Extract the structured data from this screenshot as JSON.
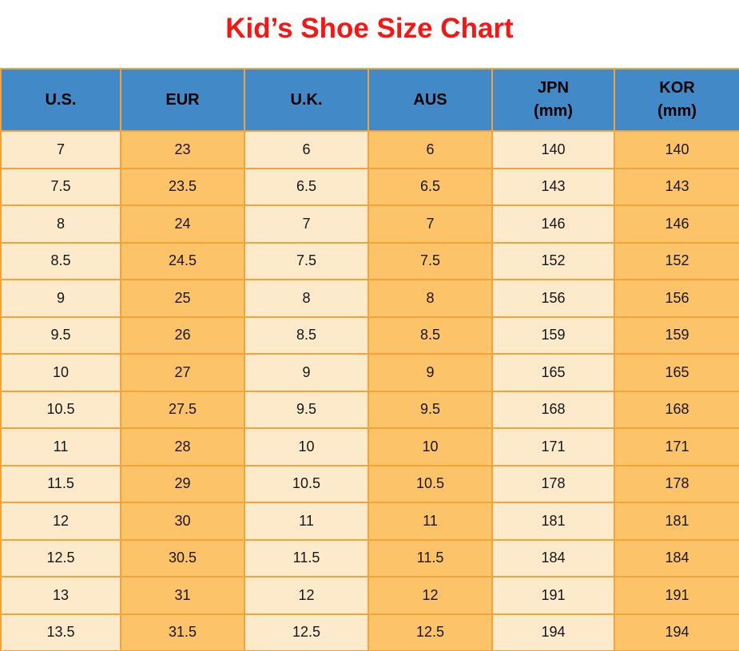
{
  "page_title": "Kid’s Shoe Size Chart",
  "colors": {
    "title_red": "#fb1412",
    "header_blue": "#4289c7",
    "cell_cream": "#fdeacb",
    "cell_orange": "#fdc368",
    "grid_orange": "#f2a33a",
    "text_black": "#161616"
  },
  "chart_data": {
    "type": "table",
    "title": "Kid’s Shoe Size Chart",
    "columns": [
      "U.S.",
      "EUR",
      "U.K.",
      "AUS",
      "JPN\n(mm)",
      "KOR\n(mm)"
    ],
    "rows": [
      [
        "7",
        "23",
        "6",
        "6",
        "140",
        "140"
      ],
      [
        "7.5",
        "23.5",
        "6.5",
        "6.5",
        "143",
        "143"
      ],
      [
        "8",
        "24",
        "7",
        "7",
        "146",
        "146"
      ],
      [
        "8.5",
        "24.5",
        "7.5",
        "7.5",
        "152",
        "152"
      ],
      [
        "9",
        "25",
        "8",
        "8",
        "156",
        "156"
      ],
      [
        "9.5",
        "26",
        "8.5",
        "8.5",
        "159",
        "159"
      ],
      [
        "10",
        "27",
        "9",
        "9",
        "165",
        "165"
      ],
      [
        "10.5",
        "27.5",
        "9.5",
        "9.5",
        "168",
        "168"
      ],
      [
        "11",
        "28",
        "10",
        "10",
        "171",
        "171"
      ],
      [
        "11.5",
        "29",
        "10.5",
        "10.5",
        "178",
        "178"
      ],
      [
        "12",
        "30",
        "11",
        "11",
        "181",
        "181"
      ],
      [
        "12.5",
        "30.5",
        "11.5",
        "11.5",
        "184",
        "184"
      ],
      [
        "13",
        "31",
        "12",
        "12",
        "191",
        "191"
      ],
      [
        "13.5",
        "31.5",
        "12.5",
        "12.5",
        "194",
        "194"
      ]
    ]
  }
}
